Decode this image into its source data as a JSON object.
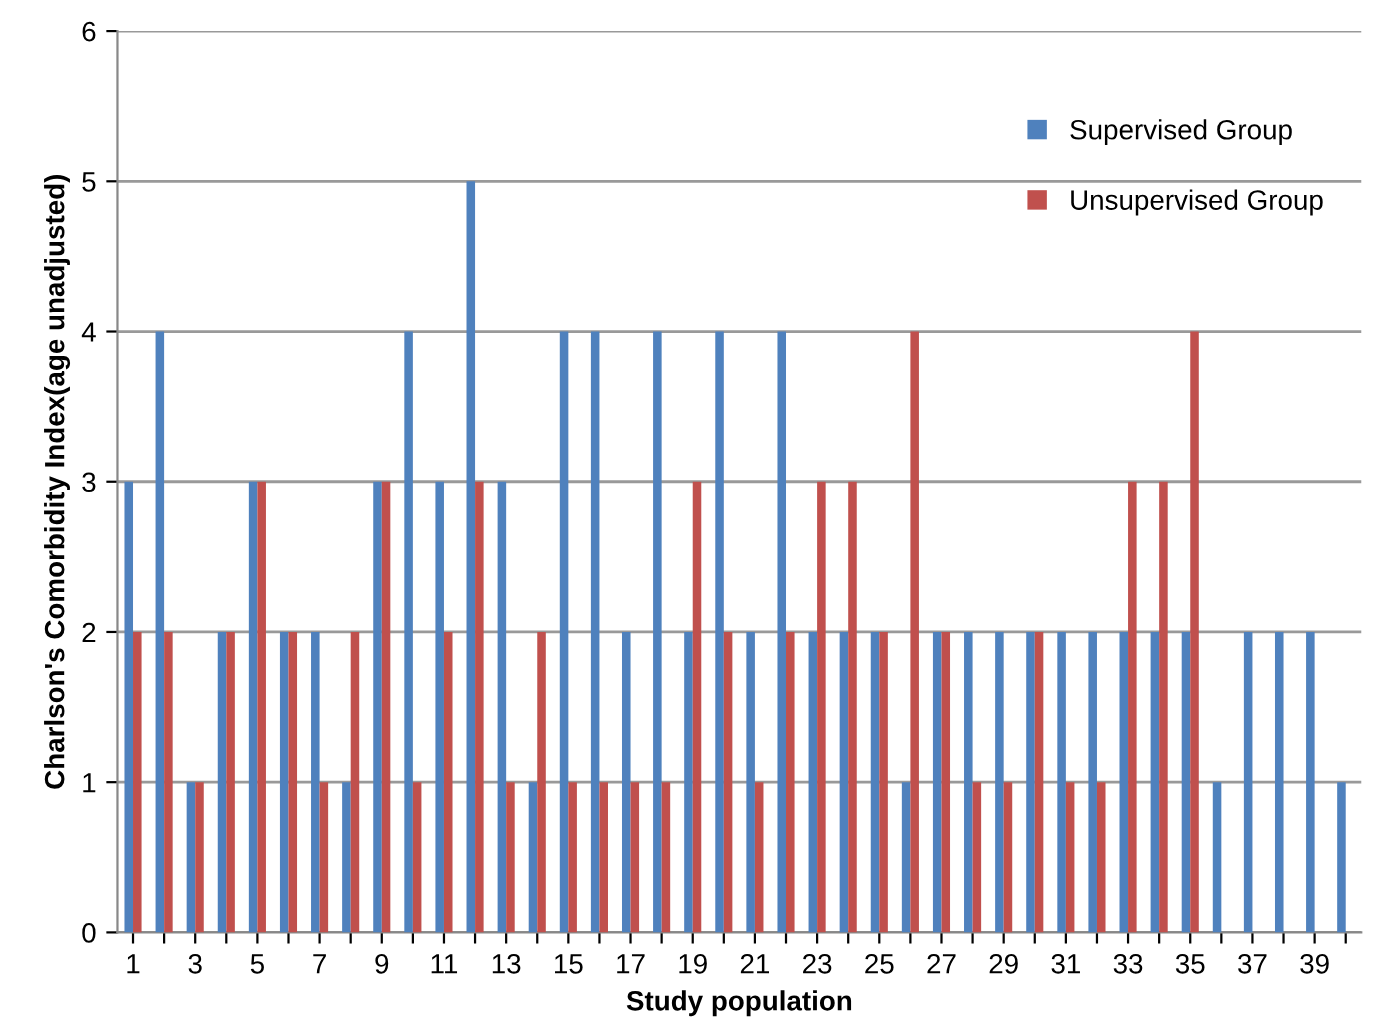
{
  "chart_data": {
    "type": "bar",
    "xlabel": "Study population",
    "ylabel": "Charlson's Comorbidity Index(age unadjusted)",
    "categories": [
      "1",
      null,
      "3",
      null,
      "5",
      null,
      "7",
      null,
      "9",
      null,
      "11",
      null,
      "13",
      null,
      "15",
      null,
      "17",
      null,
      "19",
      null,
      "21",
      null,
      "23",
      null,
      "25",
      null,
      "27",
      null,
      "29",
      null,
      "31",
      null,
      "33",
      null,
      "35",
      null,
      "37",
      null,
      "39",
      null
    ],
    "series": [
      {
        "name": "Supervised Group",
        "color": "#4f81bd",
        "values": [
          3,
          4,
          1,
          2,
          3,
          2,
          2,
          1,
          3,
          4,
          3,
          5,
          3,
          1,
          4,
          4,
          2,
          4,
          2,
          4,
          2,
          4,
          2,
          2,
          2,
          1,
          2,
          2,
          2,
          2,
          2,
          2,
          2,
          2,
          2,
          1,
          2,
          2,
          2,
          1
        ]
      },
      {
        "name": "Unsupervised Group",
        "color": "#c0504d",
        "values": [
          2,
          2,
          1,
          2,
          3,
          2,
          1,
          2,
          3,
          1,
          2,
          3,
          1,
          2,
          1,
          1,
          1,
          1,
          3,
          2,
          1,
          2,
          3,
          3,
          2,
          4,
          2,
          1,
          1,
          2,
          1,
          1,
          3,
          3,
          4,
          null,
          null,
          null,
          null,
          null
        ]
      }
    ],
    "ylim": [
      0,
      6
    ],
    "yticks": [
      0,
      1,
      2,
      3,
      4,
      5,
      6
    ],
    "grid": "y",
    "legend": "top right"
  }
}
